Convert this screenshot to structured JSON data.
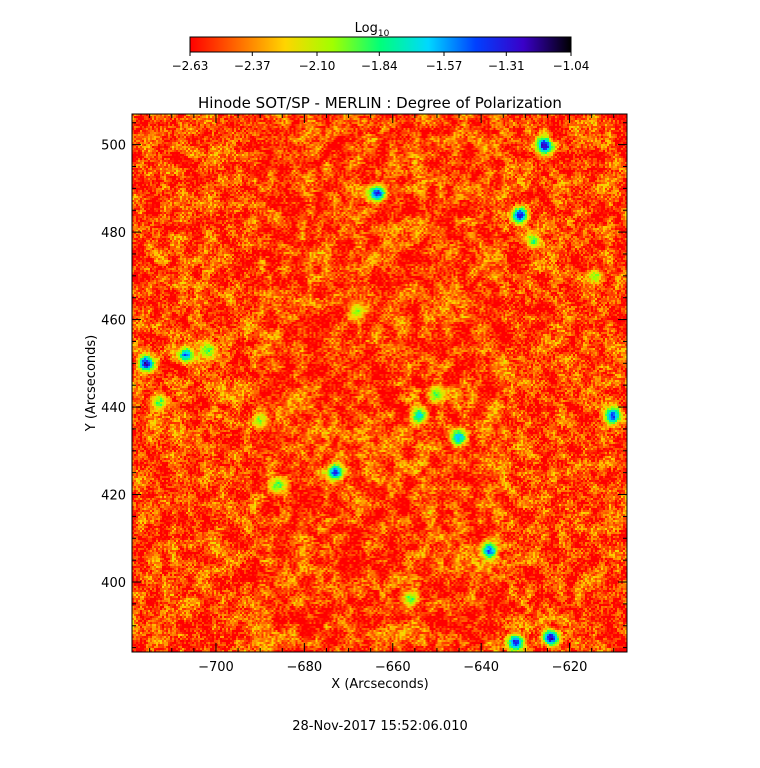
{
  "chart_data": {
    "type": "heatmap",
    "title": "Hinode SOT/SP - MERLIN : Degree of Polarization",
    "xlabel": "X (Arcseconds)",
    "ylabel": "Y (Arcseconds)",
    "xlim": [
      -719,
      -607
    ],
    "ylim": [
      384,
      507
    ],
    "x_ticks": [
      -700,
      -680,
      -660,
      -640,
      -620
    ],
    "y_ticks": [
      400,
      420,
      440,
      460,
      480,
      500
    ],
    "x_tick_labels": [
      "−700",
      "−680",
      "−660",
      "−640",
      "−620"
    ],
    "y_tick_labels": [
      "400",
      "420",
      "440",
      "460",
      "480",
      "500"
    ],
    "colorbar": {
      "label_main": "Log",
      "label_sub": "10",
      "range": [
        -2.63,
        -1.04
      ],
      "ticks": [
        -2.63,
        -2.37,
        -2.1,
        -1.84,
        -1.57,
        -1.31,
        -1.04
      ],
      "tick_labels": [
        "−2.63",
        "−2.37",
        "−2.10",
        "−1.84",
        "−1.57",
        "−1.31",
        "−1.04"
      ],
      "colormap": [
        "#ff0000",
        "#ff6a00",
        "#ffd500",
        "#a0ff00",
        "#00ff7a",
        "#00d8ff",
        "#0040ff",
        "#3a00c8",
        "#000000"
      ]
    },
    "background_value": -2.5,
    "patches": [
      {
        "x": -663.5,
        "y": 489,
        "value": -1.32
      },
      {
        "x": -625.5,
        "y": 500,
        "value": -1.2
      },
      {
        "x": -631,
        "y": 484,
        "value": -1.3
      },
      {
        "x": -716,
        "y": 450,
        "value": -1.25
      },
      {
        "x": -707,
        "y": 452,
        "value": -1.5
      },
      {
        "x": -702,
        "y": 453,
        "value": -1.9
      },
      {
        "x": -713,
        "y": 441,
        "value": -1.9
      },
      {
        "x": -610,
        "y": 438,
        "value": -1.4
      },
      {
        "x": -654,
        "y": 438,
        "value": -1.7
      },
      {
        "x": -645,
        "y": 433,
        "value": -1.6
      },
      {
        "x": -673,
        "y": 425,
        "value": -1.4
      },
      {
        "x": -686,
        "y": 422,
        "value": -1.9
      },
      {
        "x": -638,
        "y": 407,
        "value": -1.45
      },
      {
        "x": -632,
        "y": 386,
        "value": -1.3
      },
      {
        "x": -624,
        "y": 387,
        "value": -1.2
      },
      {
        "x": -650,
        "y": 443,
        "value": -1.9
      },
      {
        "x": -668,
        "y": 462,
        "value": -2.0
      },
      {
        "x": -628,
        "y": 478,
        "value": -1.9
      },
      {
        "x": -690,
        "y": 437,
        "value": -2.0
      },
      {
        "x": -656,
        "y": 396,
        "value": -1.9
      },
      {
        "x": -614,
        "y": 470,
        "value": -2.0
      }
    ],
    "timestamp": "28-Nov-2017 15:52:06.010"
  }
}
